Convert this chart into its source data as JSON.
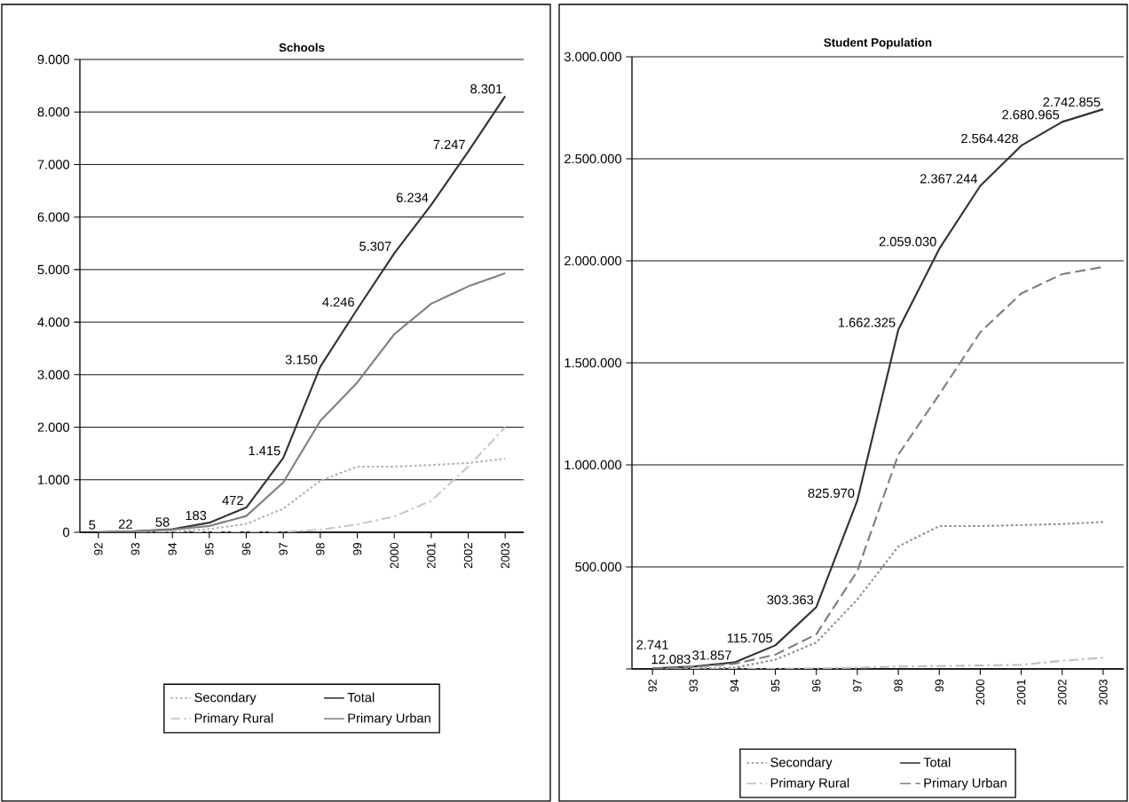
{
  "chart_data": [
    {
      "type": "line",
      "title": "Schools",
      "categories": [
        "92",
        "93",
        "94",
        "95",
        "96",
        "97",
        "98",
        "99",
        "2000",
        "2001",
        "2002",
        "2003"
      ],
      "series": [
        {
          "name": "Secondary",
          "color": "#b4b4b4",
          "line_style": "dotted",
          "values": [
            0,
            0,
            10,
            60,
            160,
            450,
            980,
            1250,
            1250,
            1280,
            1320,
            1400
          ]
        },
        {
          "name": "Total",
          "color": "#333333",
          "line_style": "solid",
          "values": [
            5,
            22,
            58,
            183,
            472,
            1415,
            3150,
            4246,
            5307,
            6234,
            7247,
            8301
          ],
          "value_labels": [
            "5",
            "22",
            "58",
            "183",
            "472",
            "1.415",
            "3.150",
            "4.246",
            "5.307",
            "6.234",
            "7.247",
            "8.301"
          ]
        },
        {
          "name": "Primary Rural",
          "color": "#c8c8c8",
          "line_style": "dashdot",
          "values": [
            0,
            0,
            0,
            0,
            0,
            10,
            50,
            150,
            300,
            600,
            1250,
            2000
          ]
        },
        {
          "name": "Primary Urban",
          "color": "#808080",
          "line_style": "solid",
          "values": [
            0,
            20,
            50,
            120,
            310,
            950,
            2120,
            2850,
            3770,
            4350,
            4680,
            4930
          ]
        }
      ],
      "ylim": [
        0,
        9000
      ],
      "yticks": [
        0,
        {
          "value": 1000,
          "label": "1.000"
        },
        {
          "value": 2000,
          "label": "2.000"
        },
        {
          "value": 3000,
          "label": "3.000"
        },
        {
          "value": 4000,
          "label": "4.000"
        },
        {
          "value": 5000,
          "label": "5.000"
        },
        {
          "value": 6000,
          "label": "6.000"
        },
        {
          "value": 7000,
          "label": "7.000"
        },
        {
          "value": 8000,
          "label": "8.000"
        },
        {
          "value": 9000,
          "label": "9.000"
        }
      ],
      "grid": "y",
      "legend": "bottom",
      "marker": "none"
    },
    {
      "type": "line",
      "title": "Student Population",
      "categories": [
        "92",
        "93",
        "94",
        "95",
        "96",
        "97",
        "98",
        "99",
        "2000",
        "2001",
        "2002",
        "2003"
      ],
      "series": [
        {
          "name": "Secondary",
          "color": "#909090",
          "line_style": "dotted",
          "values": [
            0,
            2000,
            6000,
            45000,
            130000,
            340000,
            600000,
            700000,
            700000,
            705000,
            710000,
            720000
          ]
        },
        {
          "name": "Total",
          "color": "#333333",
          "line_style": "solid",
          "values": [
            2741,
            12083,
            31857,
            115705,
            303363,
            825970,
            1662325,
            2059030,
            2367244,
            2564428,
            2680965,
            2742855
          ],
          "value_labels": [
            "2.741",
            "12.083",
            "31.857",
            "115.705",
            "303.363",
            "825.970",
            "1.662.325",
            "2.059.030",
            "2.367.244",
            "2.564.428",
            "2.680.965",
            "2.742.855"
          ]
        },
        {
          "name": "Primary Rural",
          "color": "#c0c0c0",
          "line_style": "dashdot",
          "values": [
            0,
            0,
            0,
            1000,
            3000,
            6000,
            12000,
            14000,
            17000,
            20000,
            40000,
            55000
          ]
        },
        {
          "name": "Primary Urban",
          "color": "#808080",
          "line_style": "dashed",
          "values": [
            2000,
            10000,
            25000,
            70000,
            170000,
            480000,
            1050000,
            1345000,
            1650000,
            1840000,
            1935000,
            1970000
          ]
        }
      ],
      "ylim": [
        0,
        3000000
      ],
      "yticks": [
        {
          "value": 0,
          "label": null
        },
        {
          "value": 500000,
          "label": "500.000"
        },
        {
          "value": 1000000,
          "label": "1.000.000"
        },
        {
          "value": 1500000,
          "label": "1.500.000"
        },
        {
          "value": 2000000,
          "label": "2.000.000"
        },
        {
          "value": 2500000,
          "label": "2.500.000"
        },
        {
          "value": 3000000,
          "label": "3.000.000"
        }
      ],
      "grid": "y",
      "legend": "bottom",
      "marker": "none"
    }
  ]
}
